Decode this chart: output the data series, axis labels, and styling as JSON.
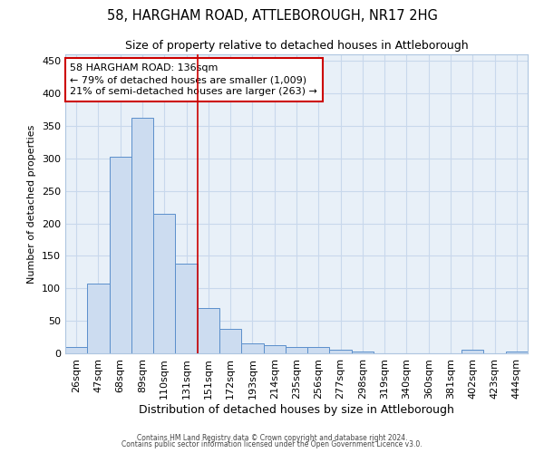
{
  "title1": "58, HARGHAM ROAD, ATTLEBOROUGH, NR17 2HG",
  "title2": "Size of property relative to detached houses in Attleborough",
  "xlabel": "Distribution of detached houses by size in Attleborough",
  "ylabel": "Number of detached properties",
  "bar_labels": [
    "26sqm",
    "47sqm",
    "68sqm",
    "89sqm",
    "110sqm",
    "131sqm",
    "151sqm",
    "172sqm",
    "193sqm",
    "214sqm",
    "235sqm",
    "256sqm",
    "277sqm",
    "298sqm",
    "319sqm",
    "340sqm",
    "360sqm",
    "381sqm",
    "402sqm",
    "423sqm",
    "444sqm"
  ],
  "bar_heights": [
    10,
    108,
    302,
    362,
    215,
    138,
    70,
    38,
    15,
    12,
    10,
    10,
    6,
    3,
    0,
    0,
    0,
    0,
    5,
    0,
    3
  ],
  "bar_color": "#ccdcf0",
  "bar_edge_color": "#5b8fcb",
  "property_line_x": 5.5,
  "annotation_line1": "58 HARGHAM ROAD: 136sqm",
  "annotation_line2": "← 79% of detached houses are smaller (1,009)",
  "annotation_line3": "21% of semi-detached houses are larger (263) →",
  "annotation_box_color": "#cc0000",
  "vline_color": "#cc0000",
  "grid_color": "#c8d8ec",
  "background_color": "#ffffff",
  "plot_bg_color": "#e8f0f8",
  "ylim": [
    0,
    460
  ],
  "yticks": [
    0,
    50,
    100,
    150,
    200,
    250,
    300,
    350,
    400,
    450
  ],
  "footer_line1": "Contains HM Land Registry data © Crown copyright and database right 2024.",
  "footer_line2": "Contains public sector information licensed under the Open Government Licence v3.0."
}
